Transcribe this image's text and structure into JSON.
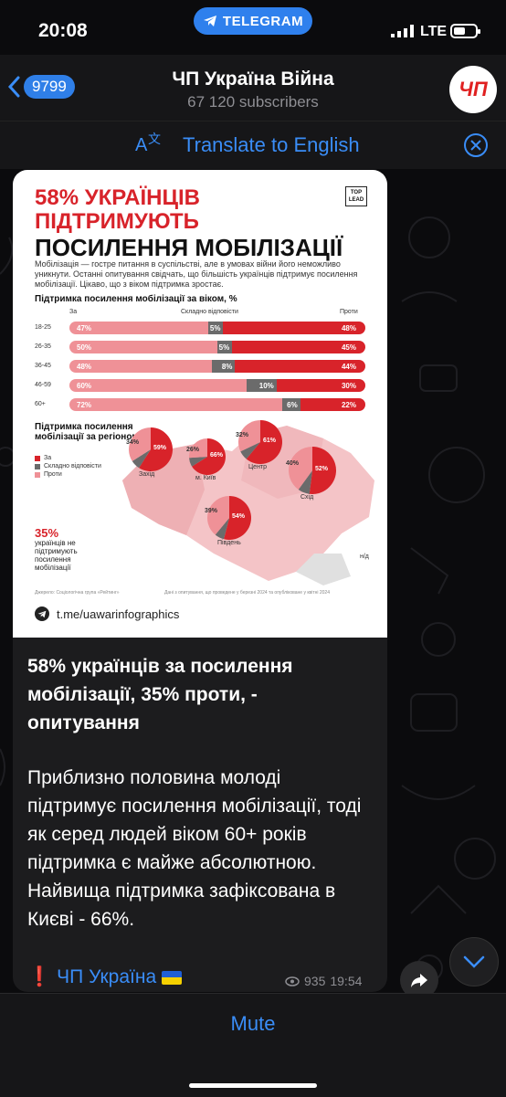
{
  "status_bar": {
    "time": "20:08",
    "app_pill": "TELEGRAM",
    "network": "LTE"
  },
  "header": {
    "back_count": "9799",
    "title": "ЧП Україна Війна",
    "subscribers": "67 120 subscribers",
    "avatar_text": "ЧП"
  },
  "translate_bar": {
    "label": "Translate to English"
  },
  "infographic": {
    "title_line1": "58% УКРАЇНЦІВ",
    "title_line2": "ПІДТРИМУЮТЬ",
    "title_line3": "ПОСИЛЕННЯ МОБІЛІЗАЦІЇ",
    "logo": "TOP LEAD",
    "description": "Мобілізація — гостре питання в суспільстві, але в умовах війни його неможливо уникнути. Останні опитування свідчать, що більшість українців підтримує посилення мобілізації. Цікаво, що з віком підтримка зростає.",
    "age_chart_title": "Підтримка посилення мобілізації за віком, %",
    "col_for": "За",
    "col_hard": "Складно відповісти",
    "col_against": "Проти",
    "region_title": "Підтримка посилення мобілізації за регіоном, %",
    "legend": [
      "За",
      "Складно відповісти",
      "Проти"
    ],
    "against_big": "35%",
    "against_text": "українців не підтримують посилення мобілізації",
    "source_left": "Джерело: Соціологічна група «Рейтинг»",
    "source_right": "Дані з опитування, що проведене у березні 2024 та опубліковане у квітні 2024",
    "footer_link": "t.me/uawarinfographics",
    "regions": [
      {
        "name": "Захід",
        "za": "59%",
        "proty": "34%"
      },
      {
        "name": "м. Київ",
        "za": "66%",
        "proty": "26%"
      },
      {
        "name": "Центр",
        "za": "61%",
        "proty": "32%"
      },
      {
        "name": "Схід",
        "za": "52%",
        "proty": "40%"
      },
      {
        "name": "Південь",
        "za": "54%",
        "proty": "39%"
      }
    ],
    "no_data": "н/д"
  },
  "chart_data": {
    "type": "bar",
    "title": "Підтримка посилення мобілізації за віком, %",
    "categories": [
      "18-25",
      "26-35",
      "36-45",
      "46-59",
      "60+"
    ],
    "series": [
      {
        "name": "За",
        "values": [
          47,
          50,
          48,
          60,
          72
        ]
      },
      {
        "name": "Складно відповісти",
        "values": [
          5,
          5,
          8,
          10,
          6
        ]
      },
      {
        "name": "Проти",
        "values": [
          48,
          45,
          44,
          30,
          22
        ]
      }
    ],
    "colors": {
      "za": "#ef9197",
      "hard": "#6b6b6b",
      "against": "#d8232a"
    },
    "ylim": [
      0,
      100
    ],
    "stacked": true,
    "orientation": "horizontal",
    "grid": false
  },
  "message": {
    "title": "58% українців за посилення мобілізації, 35% проти, - опитування",
    "body": "Приблизно половина молоді підтримує посилення мобілізації, тоді як серед людей віком 60+ років підтримка є майже абсолютною. Найвища підтримка зафіксована в Києві - 66%.",
    "excl": "❗️",
    "channel_link": "ЧП Україна",
    "views": "935",
    "time": "19:54"
  },
  "bottom_bar": {
    "mute_label": "Mute"
  }
}
